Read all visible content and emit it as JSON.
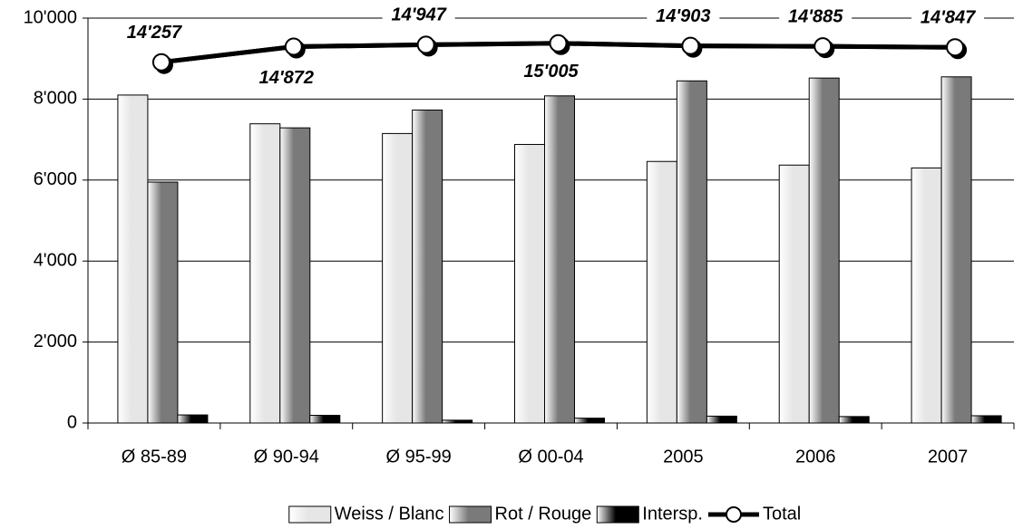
{
  "chart_data": {
    "type": "bar",
    "categories": [
      "Ø 85-89",
      "Ø 90-94",
      "Ø 95-99",
      "Ø 00-04",
      "2005",
      "2006",
      "2007"
    ],
    "series": [
      {
        "name": "Weiss / Blanc",
        "color": "#e6e6e6",
        "values": [
          8100,
          7390,
          7150,
          6880,
          6460,
          6370,
          6300
        ]
      },
      {
        "name": "Rot / Rouge",
        "color": "#7a7a7a",
        "values": [
          5950,
          7290,
          7730,
          8080,
          8450,
          8520,
          8550
        ]
      },
      {
        "name": "Intersp.",
        "color": "#000000",
        "values": [
          200,
          190,
          70,
          120,
          170,
          160,
          180
        ]
      },
      {
        "name": "Total",
        "type": "line",
        "axis": "y2",
        "color": "#000000",
        "values": [
          14257,
          14872,
          14947,
          15005,
          14903,
          14885,
          14847
        ],
        "value_labels": [
          "14'257",
          "14'872",
          "14'947",
          "15'005",
          "14'903",
          "14'885",
          "14'847"
        ]
      }
    ],
    "ylim": [
      0,
      10000
    ],
    "yticks": [
      0,
      {
        "value": 2000,
        "label": "2'000"
      },
      {
        "value": 4000,
        "label": "4'000"
      },
      {
        "value": 6000,
        "label": "6'000"
      },
      {
        "value": 8000,
        "label": "8'000"
      },
      {
        "value": 10000,
        "label": "10'000"
      }
    ],
    "y2lim": [
      0,
      16000
    ],
    "grid": true,
    "legend": "bottom"
  }
}
